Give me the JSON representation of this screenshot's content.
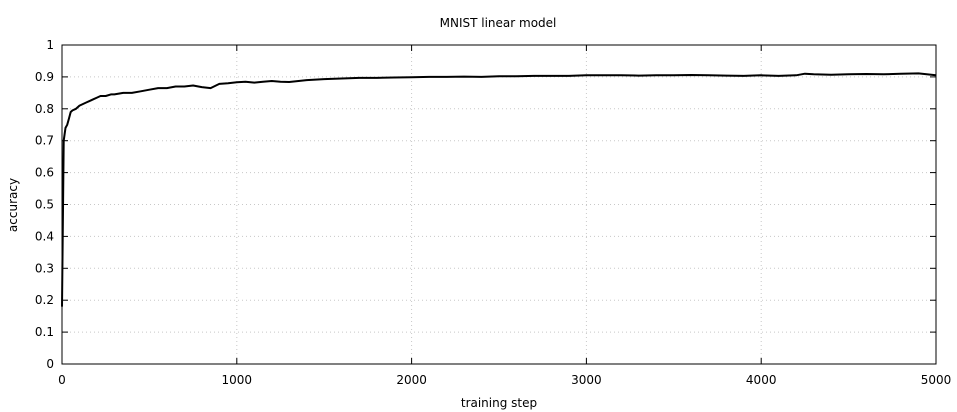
{
  "chart_data": {
    "type": "line",
    "title": "MNIST linear model",
    "xlabel": "training step",
    "ylabel": "accuracy",
    "xlim": [
      0,
      5000
    ],
    "ylim": [
      0,
      1
    ],
    "xticks": [
      0,
      1000,
      2000,
      3000,
      4000,
      5000
    ],
    "yticks": [
      0,
      0.1,
      0.2,
      0.3,
      0.4,
      0.5,
      0.6,
      0.7,
      0.8,
      0.9,
      1
    ],
    "ytick_labels": [
      "0",
      "0.1",
      "0.2",
      "0.3",
      "0.4",
      "0.5",
      "0.6",
      "0.7",
      "0.8",
      "0.9",
      "1"
    ],
    "grid": true,
    "legend": "none",
    "line_color": "#000000",
    "grid_color": "#c8c8c8",
    "series": [
      {
        "x": [
          0,
          10,
          20,
          30,
          40,
          50,
          60,
          80,
          100,
          120,
          140,
          160,
          180,
          200,
          220,
          250,
          280,
          300,
          350,
          400,
          450,
          500,
          550,
          600,
          650,
          700,
          750,
          800,
          850,
          900,
          950,
          1000,
          1050,
          1100,
          1150,
          1200,
          1250,
          1300,
          1400,
          1500,
          1600,
          1700,
          1800,
          1900,
          2000,
          2100,
          2200,
          2300,
          2400,
          2500,
          2600,
          2700,
          2800,
          2900,
          3000,
          3100,
          3200,
          3300,
          3400,
          3500,
          3600,
          3700,
          3800,
          3900,
          4000,
          4100,
          4200,
          4250,
          4300,
          4400,
          4500,
          4600,
          4700,
          4800,
          4900,
          5000
        ],
        "y": [
          0.18,
          0.7,
          0.74,
          0.75,
          0.77,
          0.79,
          0.795,
          0.8,
          0.81,
          0.815,
          0.82,
          0.825,
          0.83,
          0.835,
          0.84,
          0.84,
          0.845,
          0.845,
          0.85,
          0.85,
          0.855,
          0.86,
          0.865,
          0.865,
          0.87,
          0.87,
          0.873,
          0.868,
          0.865,
          0.878,
          0.88,
          0.883,
          0.885,
          0.882,
          0.885,
          0.887,
          0.885,
          0.884,
          0.89,
          0.893,
          0.895,
          0.897,
          0.897,
          0.898,
          0.899,
          0.9,
          0.9,
          0.901,
          0.9,
          0.902,
          0.902,
          0.903,
          0.903,
          0.903,
          0.905,
          0.905,
          0.905,
          0.904,
          0.905,
          0.905,
          0.906,
          0.905,
          0.904,
          0.903,
          0.905,
          0.903,
          0.905,
          0.91,
          0.908,
          0.907,
          0.908,
          0.909,
          0.908,
          0.91,
          0.911,
          0.905
        ]
      }
    ]
  }
}
